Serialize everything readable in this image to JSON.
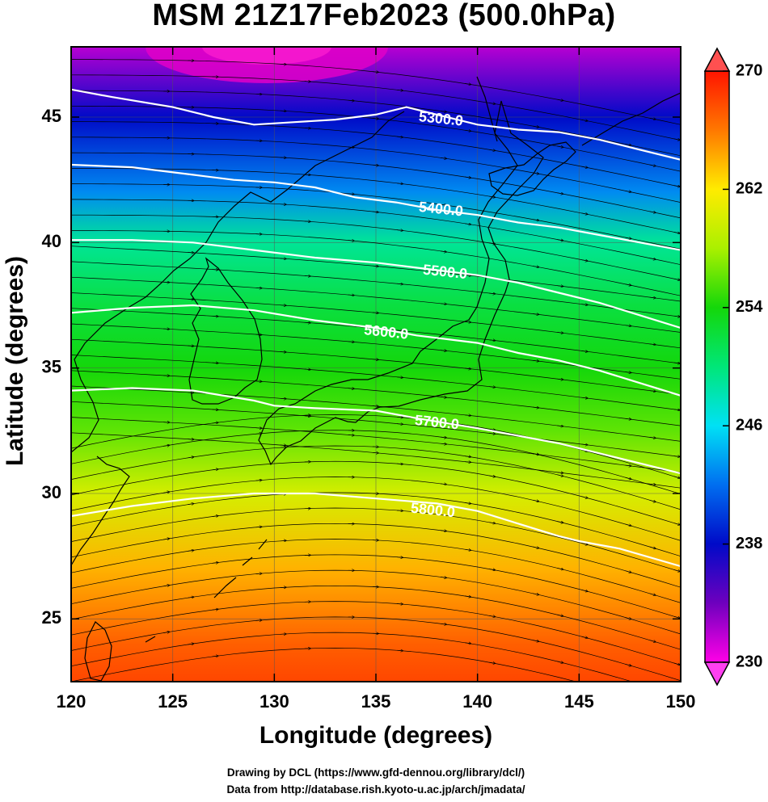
{
  "title": "MSM 21Z17Feb2023 (500.0hPa)",
  "credits": {
    "line1": "Drawing by DCL (https://www.gfd-dennou.org/library/dcl/)",
    "line2": "Data from http://database.rish.kyoto-u.ac.jp/arch/jmadata/"
  },
  "colors": {
    "background": "#ffffff",
    "axes": "#000000",
    "contour": "#ffffff",
    "coastline": "#000000",
    "streamline": "#000000"
  },
  "chart_data": {
    "type": "heatmap",
    "title": "MSM 21Z17Feb2023 (500.0hPa)",
    "xlabel": "Longitude (degrees)",
    "ylabel": "Latitude  (degrees)",
    "xlim": [
      120,
      150
    ],
    "ylim": [
      22.5,
      47.8
    ],
    "x_ticks": [
      120,
      125,
      130,
      135,
      140,
      145,
      150
    ],
    "y_ticks": [
      25,
      30,
      35,
      40,
      45
    ],
    "grid": true,
    "colorbar": {
      "placement": "right",
      "min": 230,
      "max": 270,
      "ticks": [
        230,
        238,
        246,
        254,
        262,
        270
      ],
      "extend": "both"
    },
    "shaded_field_profile": {
      "latitude": [
        47.8,
        45,
        42,
        40,
        37.5,
        35,
        32.5,
        30,
        27,
        24,
        22.5
      ],
      "value": [
        232,
        238,
        243,
        249,
        252,
        254,
        256,
        260,
        264,
        267,
        268
      ]
    },
    "contours": [
      {
        "label": "5300.0",
        "lon": [
          120,
          122,
          125,
          127,
          129,
          131,
          133,
          135,
          136.5,
          138,
          140,
          142,
          144,
          146,
          148,
          150
        ],
        "lat": [
          46.1,
          45.8,
          45.4,
          45.0,
          44.7,
          44.8,
          44.9,
          45.1,
          45.4,
          45.1,
          44.7,
          44.5,
          44.4,
          44.1,
          43.7,
          43.3
        ],
        "label_at": [
          138.2,
          44.9
        ]
      },
      {
        "label": "5400.0",
        "lon": [
          120,
          123,
          126,
          128,
          130,
          132,
          134,
          136,
          138,
          140,
          142,
          144,
          146,
          148,
          150
        ],
        "lat": [
          43.1,
          43.0,
          42.7,
          42.5,
          42.4,
          42.2,
          41.8,
          41.6,
          41.3,
          41.1,
          40.8,
          40.6,
          40.3,
          40.0,
          39.7
        ],
        "label_at": [
          138.2,
          41.3
        ]
      },
      {
        "label": "5500.0",
        "lon": [
          120,
          123,
          126,
          129,
          132,
          135,
          138,
          140,
          142,
          144,
          146,
          148,
          150
        ],
        "lat": [
          40.1,
          40.1,
          40.0,
          39.7,
          39.4,
          39.2,
          38.9,
          38.7,
          38.4,
          38.0,
          37.6,
          37.1,
          36.6
        ],
        "label_at": [
          138.4,
          38.8
        ]
      },
      {
        "label": "5600.0",
        "lon": [
          120,
          123,
          126,
          129,
          132,
          135,
          137,
          140,
          142,
          144,
          146,
          148,
          150
        ],
        "lat": [
          37.2,
          37.4,
          37.5,
          37.3,
          36.9,
          36.6,
          36.3,
          36.0,
          35.6,
          35.3,
          34.9,
          34.4,
          33.9
        ],
        "label_at": [
          135.5,
          36.4
        ]
      },
      {
        "label": "5700.0",
        "lon": [
          120,
          123,
          126,
          129,
          130,
          132,
          135,
          137,
          140,
          142,
          144,
          146,
          148,
          150
        ],
        "lat": [
          34.1,
          34.2,
          34.1,
          33.7,
          33.5,
          33.4,
          33.3,
          33.0,
          32.6,
          32.3,
          32.0,
          31.6,
          31.2,
          30.8
        ],
        "label_at": [
          138.0,
          32.8
        ]
      },
      {
        "label": "5800.0",
        "lon": [
          120,
          123,
          126,
          129,
          132,
          135,
          138,
          140,
          142,
          144,
          145,
          147,
          150
        ],
        "lat": [
          29.1,
          29.5,
          29.8,
          30.0,
          30.0,
          29.8,
          29.6,
          29.3,
          28.8,
          28.3,
          28.1,
          27.8,
          27.1
        ],
        "label_at": [
          137.8,
          29.3
        ]
      }
    ],
    "streamlines": {
      "direction": "eastward",
      "shape": "meandering westerlies with a ridge near 130-135E in the south and a trough toward the northeast"
    },
    "coastlines": true
  }
}
